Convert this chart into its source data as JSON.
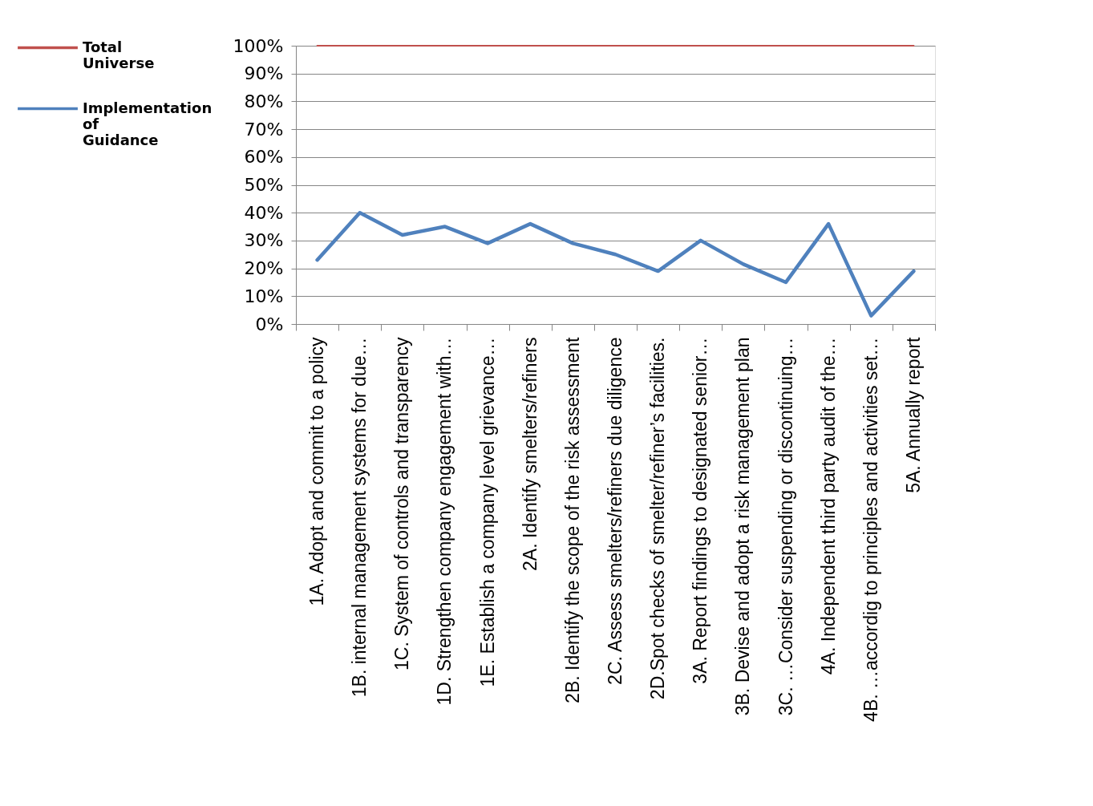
{
  "chart_data": {
    "type": "line",
    "categories": [
      "1A. Adopt and commit to a policy",
      "1B. internal management systems for due…",
      "1C. System of controls and transparency",
      "1D. Strengthen company engagement with…",
      "1E. Establish a company level grievance…",
      "2A. Identify smelters/refiners",
      "2B. Identify the scope of the risk assessment",
      "2C. Assess smelters/refiners due diligence",
      "2D.Spot checks of smelter/refiner’s facilities.",
      "3A. Report findings to designated senior…",
      "3B. Devise and adopt a risk management plan",
      "3C. …Consider suspending or discontinuing…",
      "4A. Independent third party audit of the…",
      "4B. …accordig to principles and activities set…",
      "5A. Annually report"
    ],
    "series": [
      {
        "name": "Total Universe",
        "color": "#c0504d",
        "values": [
          100,
          100,
          100,
          100,
          100,
          100,
          100,
          100,
          100,
          100,
          100,
          100,
          100,
          100,
          100
        ]
      },
      {
        "name": "Implementation of Guidance",
        "color": "#4f81bd",
        "values": [
          23,
          40,
          32,
          35,
          29,
          36,
          29,
          25,
          19,
          30,
          21.5,
          15,
          36,
          3,
          19
        ]
      }
    ],
    "ylim": [
      0,
      100
    ],
    "yticks": [
      {
        "value": 0,
        "label": "0%"
      },
      {
        "value": 10,
        "label": "10%"
      },
      {
        "value": 20,
        "label": "20%"
      },
      {
        "value": 30,
        "label": "30%"
      },
      {
        "value": 40,
        "label": "40%"
      },
      {
        "value": 50,
        "label": "50%"
      },
      {
        "value": 60,
        "label": "60%"
      },
      {
        "value": 70,
        "label": "70%"
      },
      {
        "value": 80,
        "label": "80%"
      },
      {
        "value": 90,
        "label": "90%"
      },
      {
        "value": 100,
        "label": "100%"
      }
    ],
    "grid": "y",
    "legend": "left"
  }
}
